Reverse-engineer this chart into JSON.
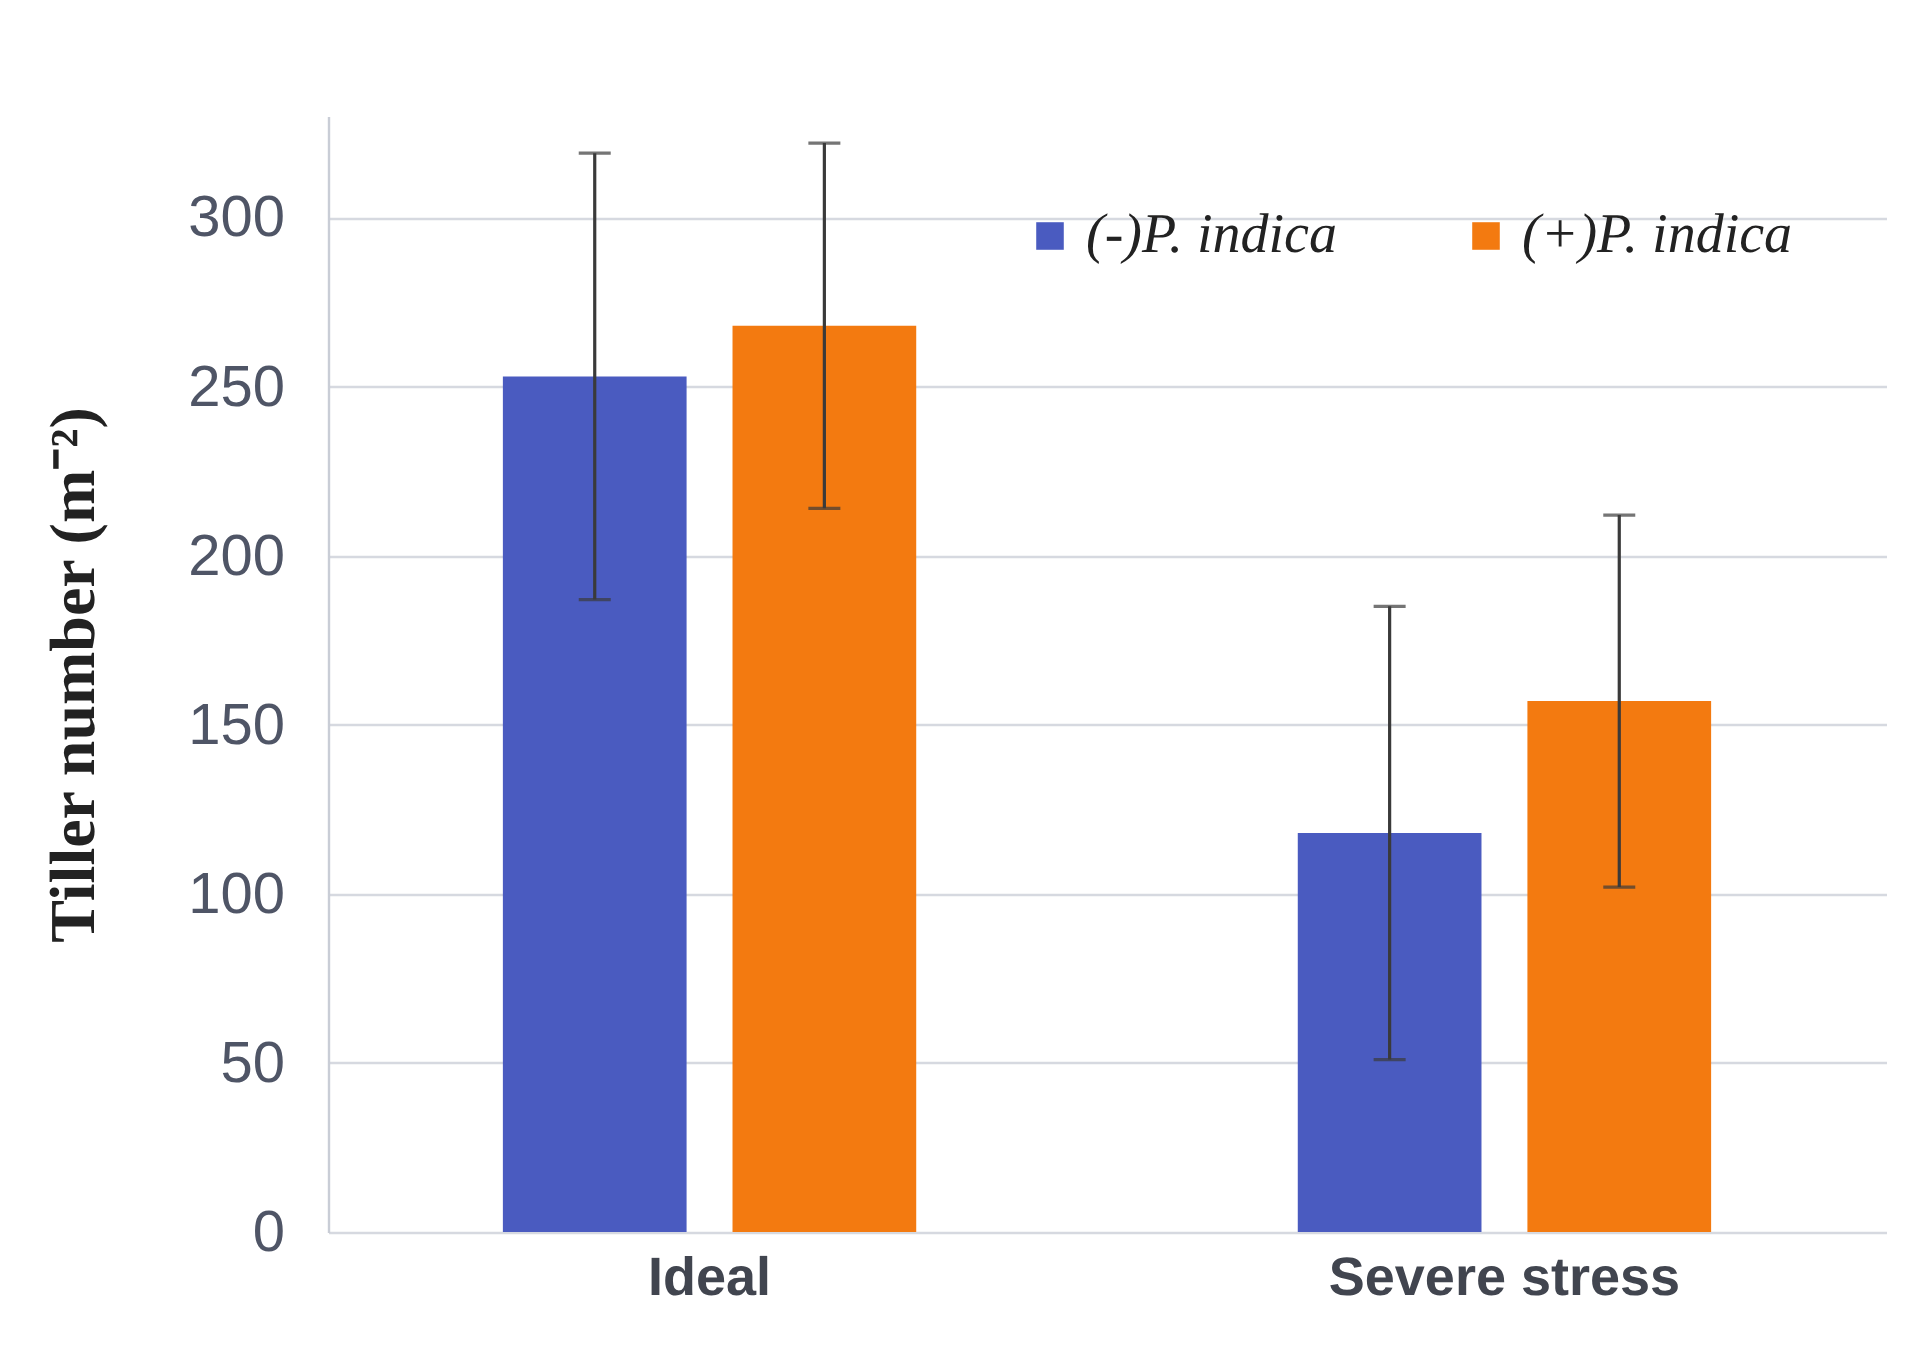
{
  "chart_data": {
    "type": "bar",
    "ylabel": "Tiller number (m⁻²)",
    "categories": [
      "Ideal",
      "Severe stress"
    ],
    "series": [
      {
        "name": "(-)P. indica",
        "color": "#4a5bc0",
        "values": [
          253,
          118
        ],
        "errors": [
          66,
          67
        ]
      },
      {
        "name": "(+)P. indica",
        "color": "#f37a10",
        "values": [
          268,
          157
        ],
        "errors": [
          54,
          55
        ]
      }
    ],
    "ylim": [
      0,
      330
    ],
    "yticks": [
      0,
      50,
      100,
      150,
      200,
      250,
      300
    ],
    "grid": "y",
    "legend": "top right"
  }
}
